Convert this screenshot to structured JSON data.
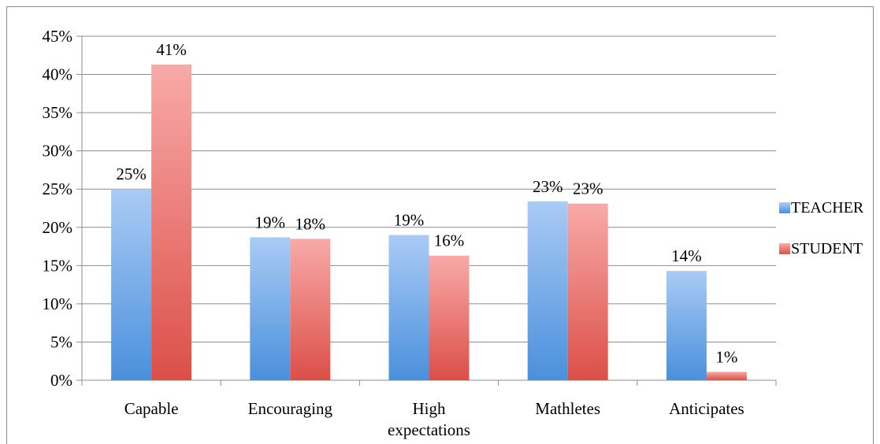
{
  "chart_data": {
    "type": "bar",
    "title": "",
    "xlabel": "",
    "ylabel": "",
    "ylim": [
      0,
      45
    ],
    "y_ticks": [
      "0%",
      "5%",
      "10%",
      "15%",
      "20%",
      "25%",
      "30%",
      "35%",
      "40%",
      "45%"
    ],
    "y_tick_values": [
      0,
      5,
      10,
      15,
      20,
      25,
      30,
      35,
      40,
      45
    ],
    "categories": [
      "Capable",
      "Encouraging",
      "High expectations",
      "Mathletes",
      "Anticipates"
    ],
    "category_lines": [
      [
        "Capable"
      ],
      [
        "Encouraging"
      ],
      [
        "High",
        "expectations"
      ],
      [
        "Mathletes"
      ],
      [
        "Anticipates"
      ]
    ],
    "grid": true,
    "legend_position": "right",
    "series": [
      {
        "name": "TEACHER",
        "values": [
          25,
          18.7,
          19,
          23.4,
          14.3
        ],
        "labels": [
          "25%",
          "19%",
          "19%",
          "23%",
          "14%"
        ],
        "color": "#5b9bd5"
      },
      {
        "name": "STUDENT",
        "values": [
          41.3,
          18.5,
          16.3,
          23.1,
          1.1
        ],
        "labels": [
          "41%",
          "18%",
          "16%",
          "23%",
          "1%"
        ],
        "color": "#e0534f"
      }
    ]
  }
}
